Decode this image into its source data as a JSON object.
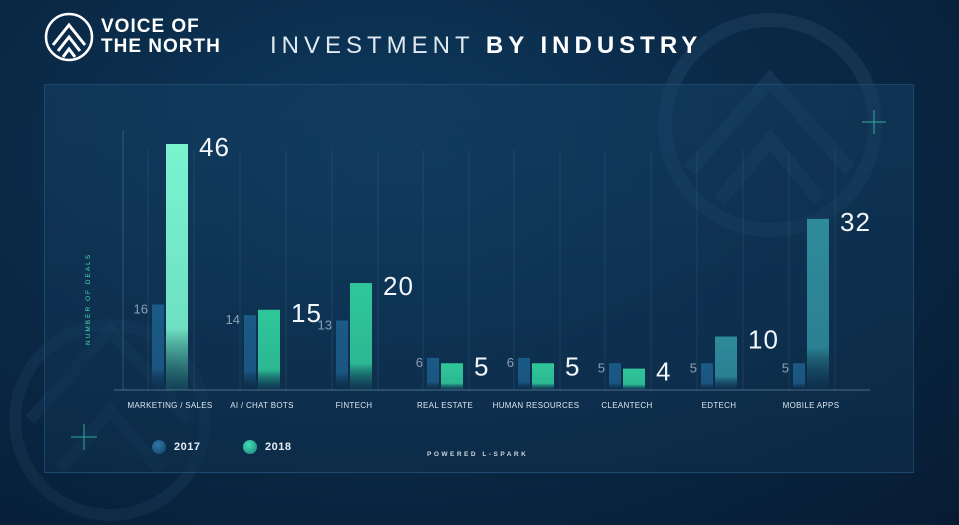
{
  "brand": {
    "line1": "VOICE OF",
    "line2": "THE NORTH"
  },
  "title": {
    "light": "INVESTMENT",
    "bold": "BY INDUSTRY"
  },
  "footer": {
    "powered": "POWERED L-SPARK"
  },
  "colors": {
    "bg": "#0a2a48",
    "bar2017": "#1b5a86",
    "bar2018_marketing": "#7af3cf",
    "bar2018_green": "#2fc79a",
    "bar2018_teal": "#2e8a9a",
    "accent": "#43e0b0"
  },
  "chart_data": {
    "type": "bar",
    "title": "INVESTMENT BY INDUSTRY",
    "xlabel": "",
    "ylabel": "NUMBER OF DEALS",
    "ylim": [
      0,
      50
    ],
    "grid": false,
    "legend": "bottom-left",
    "categories": [
      "MARKETING / SALES",
      "AI / CHAT BOTS",
      "FINTECH",
      "REAL ESTATE",
      "HUMAN RESOURCES",
      "CLEANTECH",
      "EDTECH",
      "MOBILE APPS"
    ],
    "series": [
      {
        "name": "2017",
        "values": [
          16,
          14,
          13,
          6,
          6,
          5,
          5,
          5
        ]
      },
      {
        "name": "2018",
        "values": [
          46,
          15,
          20,
          5,
          5,
          4,
          10,
          32
        ]
      }
    ]
  }
}
